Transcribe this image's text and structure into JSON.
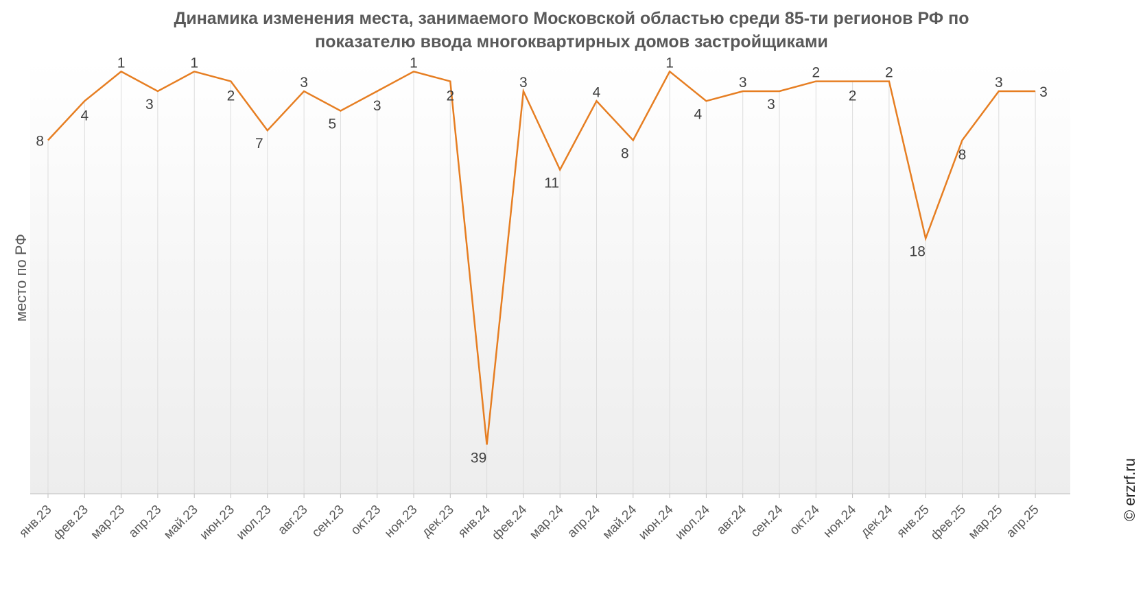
{
  "chart_data": {
    "type": "line",
    "title_line1": "Динамика изменения места, занимаемого Московской областью среди 85-ти регионов РФ по",
    "title_line2": "показателю ввода многоквартирных домов застройщиками",
    "ylabel": "место по РФ",
    "y_reversed": true,
    "ylim": [
      0,
      44
    ],
    "grid": "vertical",
    "series_color": "#E67E22",
    "categories": [
      "янв.23",
      "фев.23",
      "мар.23",
      "апр.23",
      "май.23",
      "июн.23",
      "июл.23",
      "авг.23",
      "сен.23",
      "окт.23",
      "ноя.23",
      "дек.23",
      "янв.24",
      "фев.24",
      "мар.24",
      "апр.24",
      "май.24",
      "июн.24",
      "июл.24",
      "авг.24",
      "сен.24",
      "окт.24",
      "ноя.24",
      "дек.24",
      "янв.25",
      "фев.25",
      "мар.25",
      "апр.25"
    ],
    "series": [
      {
        "values": [
          8,
          4,
          1,
          3,
          1,
          2,
          7,
          3,
          5,
          3,
          1,
          2,
          39,
          3,
          11,
          4,
          8,
          1,
          4,
          3,
          3,
          2,
          2,
          2,
          18,
          8,
          3,
          3
        ]
      }
    ]
  },
  "watermark": "© erzrf.ru"
}
